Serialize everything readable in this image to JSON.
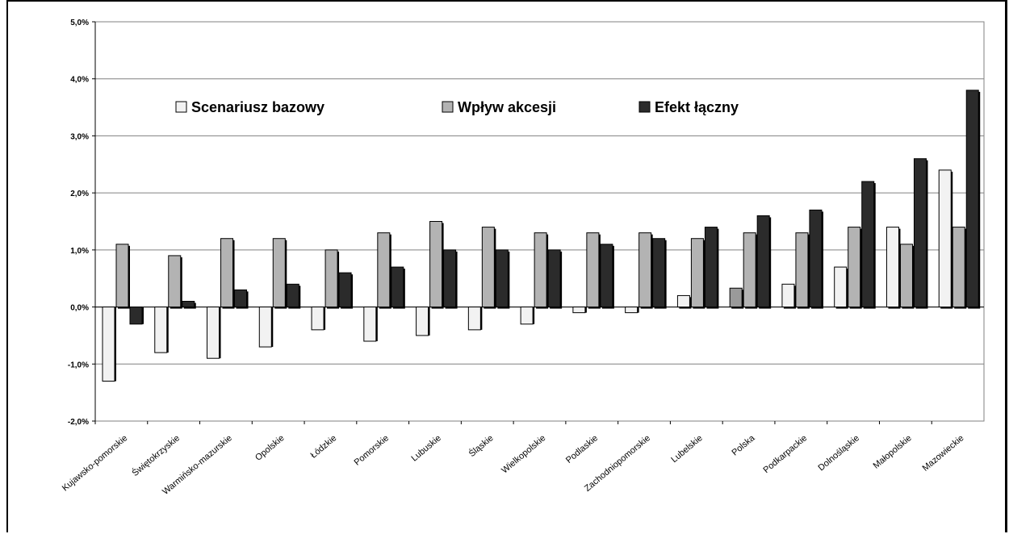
{
  "chart_data": {
    "type": "bar",
    "title": "",
    "xlabel": "",
    "ylabel": "",
    "ylim": [
      -2.0,
      5.0
    ],
    "y_ticks": [
      "5,0%",
      "4,0%",
      "3,0%",
      "2,0%",
      "1,0%",
      "0,0%",
      "-1,0%",
      "-2,0%"
    ],
    "grid": "horizontal",
    "legend_position": "top-inside",
    "categories": [
      "Kujawsko-pomorskie",
      "Świętokrzyskie",
      "Warmińsko-mazurskie",
      "Opolskie",
      "Łódzkie",
      "Pomorskie",
      "Lubuskie",
      "Śląskie",
      "Wielkopolskie",
      "Podlaskie",
      "Zachodniopomorskie",
      "Lubelskie",
      "Polska",
      "Podkarpackie",
      "Dolnośląskie",
      "Małopolskie",
      "Mazowieckie"
    ],
    "series": [
      {
        "name": "Scenariusz bazowy",
        "color": "#f2f2f2",
        "values": [
          -1.3,
          -0.8,
          -0.9,
          -0.7,
          -0.4,
          -0.6,
          -0.5,
          -0.4,
          -0.3,
          -0.1,
          -0.1,
          0.2,
          0.33,
          0.4,
          0.7,
          1.4,
          2.4
        ]
      },
      {
        "name": "Wpływ akcesji",
        "color": "#b3b3b3",
        "values": [
          1.1,
          0.9,
          1.2,
          1.2,
          1.0,
          1.3,
          1.5,
          1.4,
          1.3,
          1.3,
          1.3,
          1.2,
          1.3,
          1.3,
          1.4,
          1.1,
          1.4
        ]
      },
      {
        "name": "Efekt łączny",
        "color": "#2b2b2b",
        "values": [
          -0.3,
          0.1,
          0.3,
          0.4,
          0.6,
          0.7,
          1.0,
          1.0,
          1.0,
          1.1,
          1.2,
          1.4,
          1.6,
          1.7,
          2.2,
          2.6,
          3.8
        ]
      }
    ]
  }
}
